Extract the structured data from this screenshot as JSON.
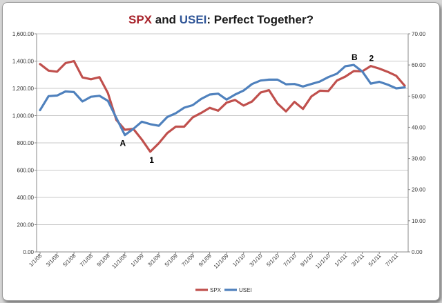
{
  "chart_data": {
    "type": "line",
    "title": {
      "part1": "SPX",
      "part2": " and ",
      "part3": "USEI",
      "part4": ": Perfect Together?"
    },
    "colors": {
      "spx": "#c0504d",
      "usei": "#4f81bd",
      "title_spx": "#a8232b",
      "title_usei": "#2f5597"
    },
    "x_tick_labels": [
      "1/1/08",
      "3/1/08",
      "5/1/08",
      "7/1/08",
      "9/1/08",
      "11/1/08",
      "1/1/09",
      "3/1/09",
      "5/1/09",
      "7/1/09",
      "9/1/09",
      "11/1/09",
      "1/1/10",
      "3/1/10",
      "5/1/10",
      "7/1/10",
      "9/1/10",
      "11/1/10",
      "1/1/11",
      "3/1/11",
      "5/1/11",
      "7/1/11"
    ],
    "y_left_labels": [
      "0.00",
      "200.00",
      "400.00",
      "600.00",
      "800.00",
      "1,000.00",
      "1,200.00",
      "1,400.00",
      "1,600.00"
    ],
    "y_right_labels": [
      "0.00",
      "10.00",
      "20.00",
      "30.00",
      "40.00",
      "50.00",
      "60.00",
      "70.00"
    ],
    "ylim_left": [
      0,
      1600
    ],
    "ylim_right": [
      0,
      70
    ],
    "grid": "horizontal",
    "legend_position": "bottom",
    "series": [
      {
        "name": "SPX",
        "axis": "left",
        "values": [
          1378,
          1330,
          1322,
          1385,
          1400,
          1280,
          1267,
          1282,
          1166,
          968,
          896,
          903,
          825,
          735,
          797,
          872,
          919,
          919,
          987,
          1020,
          1057,
          1036,
          1095,
          1115,
          1074,
          1104,
          1169,
          1187,
          1089,
          1031,
          1101,
          1049,
          1141,
          1183,
          1180,
          1257,
          1286,
          1327,
          1325,
          1364,
          1345,
          1321,
          1292,
          1219
        ]
      },
      {
        "name": "USEI",
        "axis": "right",
        "values": [
          45.5,
          50,
          50.2,
          51.5,
          51.3,
          48.3,
          49.8,
          50.1,
          48.5,
          43,
          37.5,
          39.5,
          41.8,
          41,
          40.5,
          43.3,
          44.5,
          46.3,
          47.1,
          49.1,
          50.5,
          50.8,
          48.9,
          50.5,
          51.8,
          53.9,
          55,
          55.3,
          55.3,
          53.8,
          53.9,
          53.1,
          53.9,
          54.7,
          56.1,
          57.2,
          59.6,
          60,
          57.9,
          54,
          54.6,
          53.7,
          52.5,
          52.8
        ]
      }
    ],
    "annotations": [
      {
        "label": "A",
        "series": "USEI",
        "index": 10
      },
      {
        "label": "1",
        "series": "SPX",
        "index": 13
      },
      {
        "label": "B",
        "series": "USEI",
        "index": 37
      },
      {
        "label": "2",
        "series": "SPX",
        "index": 39
      }
    ]
  }
}
